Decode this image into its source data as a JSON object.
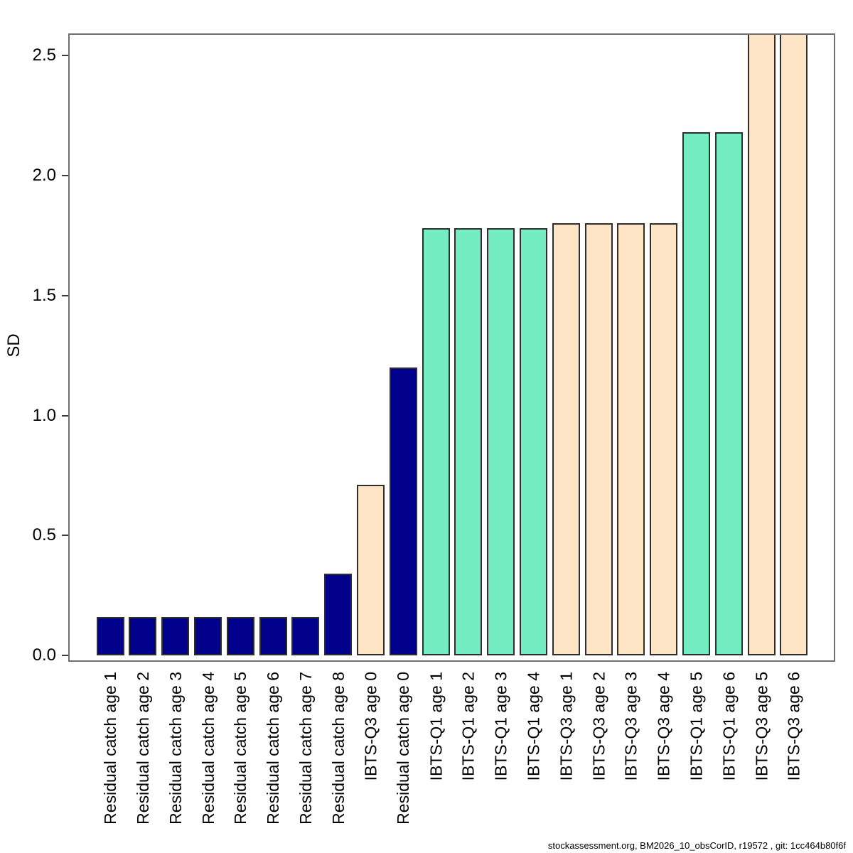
{
  "chart_data": {
    "type": "bar",
    "title": "",
    "xlabel": "",
    "ylabel": "SD",
    "ytick_labels": [
      "0.0",
      "0.5",
      "1.0",
      "1.5",
      "2.0",
      "2.5"
    ],
    "ylim": [
      0,
      2.6
    ],
    "grid": false,
    "legend_position": "none",
    "categories": [
      "Residual catch age 1",
      "Residual catch age 2",
      "Residual catch age 3",
      "Residual catch age 4",
      "Residual catch age 5",
      "Residual catch age 6",
      "Residual catch age 7",
      "Residual catch age 8",
      "IBTS-Q3 age 0",
      "Residual catch age 0",
      "IBTS-Q1 age 1",
      "IBTS-Q1 age 2",
      "IBTS-Q1 age 3",
      "IBTS-Q1 age 4",
      "IBTS-Q3 age 1",
      "IBTS-Q3 age 2",
      "IBTS-Q3 age 3",
      "IBTS-Q3 age 4",
      "IBTS-Q1 age 5",
      "IBTS-Q1 age 6",
      "IBTS-Q3 age 5",
      "IBTS-Q3 age 6"
    ],
    "values": [
      0.16,
      0.16,
      0.16,
      0.16,
      0.16,
      0.16,
      0.16,
      0.34,
      0.71,
      1.2,
      1.78,
      1.78,
      1.78,
      1.78,
      1.8,
      1.8,
      1.8,
      1.8,
      2.18,
      2.18,
      2.6,
      2.6
    ],
    "bar_groups": [
      "catch",
      "catch",
      "catch",
      "catch",
      "catch",
      "catch",
      "catch",
      "catch",
      "ibts-q3",
      "catch",
      "ibts-q1",
      "ibts-q1",
      "ibts-q1",
      "ibts-q1",
      "ibts-q3",
      "ibts-q3",
      "ibts-q3",
      "ibts-q3",
      "ibts-q1",
      "ibts-q1",
      "ibts-q3",
      "ibts-q3"
    ],
    "group_colors": {
      "catch": "#00008B",
      "ibts-q1": "#74EDC2",
      "ibts-q3": "#FCE4C4"
    },
    "bar_border_color": "#2e2e2e",
    "axis_color": "#6f6f6f"
  },
  "footer": {
    "text": "stockassessment.org, BM2026_10_obsCorID, r19572 , git: 1cc464b80f6f"
  }
}
